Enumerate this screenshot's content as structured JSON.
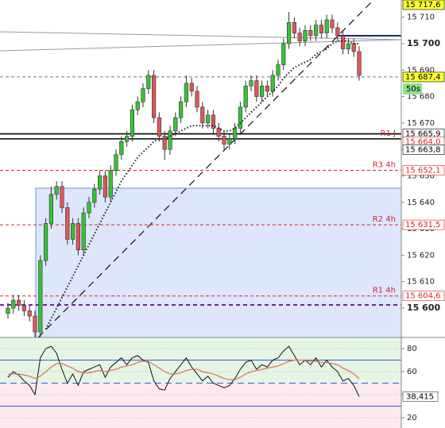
{
  "chart_data": {
    "type": "candlestick",
    "up_color": "#35c435",
    "down_color": "#e0555b",
    "ylim": [
      15588.9,
      15716.5
    ],
    "yticks": [
      {
        "value": 15600,
        "label": "15 600"
      },
      {
        "value": 15610,
        "label": "15 610"
      },
      {
        "value": 15620,
        "label": "15 620"
      },
      {
        "value": 15630,
        "label": "15 630"
      },
      {
        "value": 15640,
        "label": "15 640"
      },
      {
        "value": 15650,
        "label": "15 650"
      },
      {
        "value": 15660,
        "label": "15 660"
      },
      {
        "value": 15670,
        "label": "15 670"
      },
      {
        "value": 15680,
        "label": "15 680"
      },
      {
        "value": 15690,
        "label": "15 690"
      },
      {
        "value": 15700,
        "label": "15 700"
      },
      {
        "value": 15710,
        "label": "15 710"
      }
    ],
    "open": [
      15598,
      15600,
      15603,
      15601,
      15599,
      15597,
      15591,
      15618,
      15632,
      15643,
      15646,
      15638,
      15626,
      15632,
      15622,
      15636,
      15640,
      15645,
      15650,
      15642,
      15652,
      15658,
      15663,
      15665,
      15675,
      15678,
      15683,
      15688,
      15672,
      15665,
      15660,
      15667,
      15672,
      15678,
      15685,
      15682,
      15676,
      15670,
      15673,
      15668,
      15665,
      15662,
      15664,
      15668,
      15676,
      15684,
      15686,
      15680,
      15684,
      15682,
      15688,
      15692,
      15700,
      15708,
      15704,
      15701,
      15705,
      15703,
      15707,
      15704,
      15709,
      15706,
      15703,
      15698,
      15700,
      15697
    ],
    "high": [
      15602,
      15605,
      15605,
      15603,
      15601,
      15599,
      15620,
      15634,
      15646,
      15648,
      15648,
      15640,
      15634,
      15634,
      15638,
      15642,
      15647,
      15652,
      15652,
      15654,
      15660,
      15665,
      15667,
      15677,
      15680,
      15685,
      15690,
      15690,
      15674,
      15667,
      15669,
      15674,
      15680,
      15688,
      15687,
      15684,
      15678,
      15675,
      15675,
      15670,
      15667,
      15666,
      15670,
      15678,
      15686,
      15688,
      15688,
      15686,
      15686,
      15690,
      15694,
      15702,
      15712,
      15710,
      15706,
      15707,
      15707,
      15709,
      15709,
      15711,
      15711,
      15708,
      15705,
      15702,
      15702,
      15699
    ],
    "low": [
      15596,
      15598,
      15599,
      15597,
      15595,
      15589,
      15589,
      15616,
      15630,
      15641,
      15636,
      15624,
      15624,
      15620,
      15620,
      15634,
      15638,
      15643,
      15640,
      15640,
      15650,
      15656,
      15661,
      15663,
      15673,
      15676,
      15681,
      15670,
      15663,
      15656,
      15658,
      15665,
      15670,
      15676,
      15680,
      15674,
      15668,
      15668,
      15666,
      15663,
      15660,
      15660,
      15662,
      15666,
      15674,
      15682,
      15678,
      15678,
      15680,
      15680,
      15686,
      15690,
      15698,
      15702,
      15699,
      15699,
      15701,
      15701,
      15702,
      15702,
      15704,
      15701,
      15696,
      15696,
      15695,
      15686
    ],
    "close": [
      15600,
      15603,
      15601,
      15599,
      15597,
      15591,
      15618,
      15632,
      15643,
      15646,
      15638,
      15626,
      15632,
      15622,
      15636,
      15640,
      15645,
      15650,
      15642,
      15652,
      15658,
      15663,
      15665,
      15675,
      15678,
      15683,
      15688,
      15672,
      15665,
      15660,
      15667,
      15672,
      15678,
      15685,
      15682,
      15676,
      15670,
      15673,
      15668,
      15665,
      15662,
      15664,
      15668,
      15676,
      15684,
      15686,
      15680,
      15684,
      15682,
      15688,
      15692,
      15700,
      15708,
      15704,
      15701,
      15705,
      15703,
      15707,
      15704,
      15709,
      15706,
      15703,
      15698,
      15700,
      15697,
      15688
    ],
    "moving_average": {
      "color": "#222222",
      "values": [
        null,
        null,
        null,
        null,
        null,
        null,
        null,
        15592,
        15596,
        15600,
        15604,
        15608,
        15612,
        15616,
        15620,
        15624,
        15628,
        15632,
        15636,
        15640,
        15644,
        15648,
        15651,
        15654,
        15657,
        15659,
        15661,
        15663,
        15664,
        15664,
        15665,
        15666,
        15667,
        15668,
        15669,
        15669,
        15669,
        15669,
        15669,
        15668,
        15667,
        15667,
        15668,
        15670,
        15672,
        15674,
        15676,
        15678,
        15680,
        15682,
        15684,
        15687,
        15689,
        15691,
        15692,
        15693,
        15694,
        15696,
        15697,
        15698,
        15700,
        15701,
        15701,
        15701,
        15700,
        15700
      ]
    },
    "levels": [
      {
        "value": 15717.6,
        "label": "15 717,6",
        "text_color": "#000000",
        "box_color": "#ffff33",
        "line": "none",
        "line_color": "#000000"
      },
      {
        "value": 15687.4,
        "label": "15 687,4",
        "text_color": "#000000",
        "box_color": "#ffff33",
        "line": "dashed",
        "line_color": "#777777"
      },
      {
        "value": 15665.9,
        "label": "15 665,9",
        "text_color": "#000000",
        "box_color": "#ffffff",
        "line": "solid",
        "line_color": "#000000"
      },
      {
        "value": 15664.0,
        "label": "15 664,0",
        "name": "R1 J",
        "text_color": "#d62728",
        "box_color": "#ffffff",
        "line": "solid",
        "line_color": "#000000"
      },
      {
        "value": 15663.8,
        "label": "15 663,8",
        "text_color": "#000000",
        "box_color": "#ffffff",
        "line": "none",
        "line_color": "#000000"
      },
      {
        "value": 15652.1,
        "label": "15 652,1",
        "name": "R3 4h",
        "text_color": "#d62728",
        "box_color": "#ffffff",
        "line": "dashed",
        "line_color": "#d62728"
      },
      {
        "value": 15631.5,
        "label": "15 631,5",
        "name": "R2 4h",
        "text_color": "#d62728",
        "box_color": "#ffffff",
        "line": "dashed",
        "line_color": "#d62728"
      },
      {
        "value": 15604.6,
        "label": "15 604,6",
        "name": "R1 4h",
        "text_color": "#d62728",
        "box_color": "#ffffff",
        "line": "dashed",
        "line_color": "#d62728"
      }
    ],
    "countdown": "50s",
    "indicator": {
      "type": "line",
      "ylim": [
        11,
        89.7
      ],
      "yticks": [
        80,
        60,
        40,
        20
      ],
      "levels": [
        70,
        50,
        30
      ],
      "series": [
        {
          "color": "#111111",
          "values": [
            55,
            60,
            57,
            52,
            48,
            40,
            72,
            80,
            82,
            76,
            62,
            50,
            58,
            48,
            60,
            62,
            64,
            66,
            55,
            64,
            68,
            72,
            66,
            72,
            74,
            70,
            68,
            52,
            45,
            44,
            54,
            60,
            66,
            72,
            64,
            58,
            52,
            56,
            50,
            48,
            46,
            48,
            54,
            62,
            68,
            70,
            62,
            66,
            64,
            70,
            72,
            78,
            82,
            74,
            66,
            70,
            66,
            72,
            64,
            70,
            64,
            60,
            52,
            54,
            48,
            38.415
          ]
        },
        {
          "color": "#e0704f",
          "values": [
            58,
            58,
            58,
            57,
            56,
            54,
            56,
            60,
            64,
            67,
            67,
            65,
            63,
            60,
            59,
            59,
            60,
            61,
            60,
            61,
            62,
            64,
            65,
            66,
            68,
            69,
            69,
            66,
            63,
            60,
            58,
            58,
            59,
            61,
            62,
            62,
            60,
            59,
            58,
            56,
            54,
            53,
            53,
            55,
            58,
            60,
            61,
            62,
            63,
            64,
            65,
            67,
            69,
            70,
            70,
            70,
            69,
            69,
            68,
            68,
            67,
            66,
            63,
            61,
            58,
            54
          ]
        }
      ],
      "value_label": {
        "value": 38.415,
        "label": "38,415"
      }
    }
  }
}
